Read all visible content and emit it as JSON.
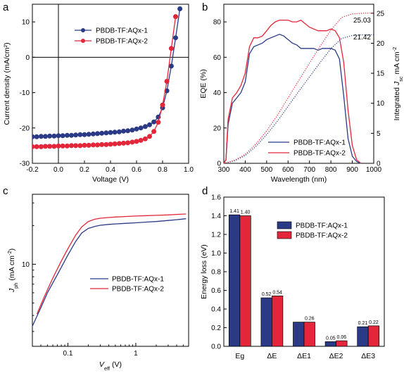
{
  "colors": {
    "blue": "#2a3a86",
    "red": "#e3263a"
  },
  "chart_data": [
    {
      "panel": "a",
      "type": "scatter",
      "xlabel": "Voltage (V)",
      "ylabel": "Current density (mA/cm²)",
      "xlim": [
        -0.2,
        1.0
      ],
      "ylim": [
        -30,
        15
      ],
      "xticks": [
        "-0.2",
        "0.0",
        "0.2",
        "0.4",
        "0.6",
        "0.8",
        "1.0"
      ],
      "yticks": [
        "10",
        "0",
        "-10",
        "-20",
        "-30"
      ],
      "legend": "upper-left",
      "series": [
        {
          "name": "PBDB-TF:AQx-1",
          "color": "#2a3a86",
          "marker": "circle",
          "x": [
            -0.2,
            -0.167,
            -0.133,
            -0.1,
            -0.067,
            -0.033,
            0.0,
            0.033,
            0.067,
            0.1,
            0.133,
            0.167,
            0.2,
            0.233,
            0.267,
            0.3,
            0.333,
            0.367,
            0.4,
            0.433,
            0.467,
            0.5,
            0.533,
            0.567,
            0.6,
            0.633,
            0.667,
            0.7,
            0.733,
            0.767,
            0.8,
            0.833,
            0.867,
            0.9,
            0.933
          ],
          "y": [
            -22.5,
            -22.5,
            -22.4,
            -22.4,
            -22.3,
            -22.3,
            -22.2,
            -22.2,
            -22.1,
            -22.1,
            -22.0,
            -21.9,
            -21.9,
            -21.8,
            -21.7,
            -21.6,
            -21.5,
            -21.4,
            -21.3,
            -21.2,
            -21.1,
            -20.9,
            -20.8,
            -20.6,
            -20.3,
            -20.0,
            -19.6,
            -19.1,
            -18.3,
            -16.9,
            -14.3,
            -9.5,
            -2.5,
            5.5,
            13.7
          ]
        },
        {
          "name": "PBDB-TF:AQx-2",
          "color": "#e3263a",
          "marker": "circle",
          "x": [
            -0.2,
            -0.167,
            -0.133,
            -0.1,
            -0.067,
            -0.033,
            0.0,
            0.033,
            0.067,
            0.1,
            0.133,
            0.167,
            0.2,
            0.233,
            0.267,
            0.3,
            0.333,
            0.367,
            0.4,
            0.433,
            0.467,
            0.5,
            0.533,
            0.567,
            0.6,
            0.633,
            0.667,
            0.7,
            0.733,
            0.767,
            0.8,
            0.833,
            0.867,
            0.9
          ],
          "y": [
            -25.3,
            -25.3,
            -25.3,
            -25.2,
            -25.2,
            -25.2,
            -25.1,
            -25.1,
            -25.1,
            -25.0,
            -25.0,
            -25.0,
            -24.9,
            -24.9,
            -24.8,
            -24.8,
            -24.7,
            -24.7,
            -24.6,
            -24.5,
            -24.4,
            -24.3,
            -24.2,
            -24.0,
            -23.8,
            -23.5,
            -23.1,
            -22.4,
            -21.0,
            -18.4,
            -13.5,
            -6.8,
            2.5,
            11.5
          ]
        }
      ]
    },
    {
      "panel": "b",
      "type": "line",
      "xlabel": "Wavelength (nm)",
      "ylabel": "EQE (%)",
      "y2label_prefix": "Integrated ",
      "y2label_j": "J",
      "y2label_sub": "sc",
      "y2label_suffix": " mA cm",
      "y2label_sup": "-2",
      "xlim": [
        300,
        1000
      ],
      "ylim": [
        0,
        90
      ],
      "y2lim": [
        0,
        26.5
      ],
      "xticks": [
        "300",
        "400",
        "500",
        "600",
        "700",
        "800",
        "900",
        "1000"
      ],
      "yticks": [
        "0",
        "20",
        "40",
        "60",
        "80"
      ],
      "y2ticks": [
        "0",
        "5",
        "10",
        "15",
        "20",
        "25"
      ],
      "legend": "lower-left",
      "annotations": {
        "red_total": "25.03",
        "blue_total": "21.42"
      },
      "series": [
        {
          "name": "PBDB-TF:AQx-1",
          "color": "#2a3a86",
          "x": [
            300,
            310,
            320,
            340,
            360,
            380,
            400,
            420,
            440,
            460,
            480,
            500,
            520,
            540,
            560,
            580,
            600,
            620,
            640,
            660,
            680,
            700,
            720,
            740,
            760,
            780,
            800,
            820,
            840,
            860,
            880,
            900,
            920,
            940
          ],
          "y": [
            0,
            2,
            22,
            34,
            37,
            40,
            46,
            62,
            66,
            67,
            68,
            70,
            71,
            72,
            73,
            72,
            70,
            68,
            67,
            65,
            65,
            65,
            65,
            64,
            65,
            65,
            65,
            64,
            59,
            38,
            14,
            4,
            1,
            0
          ]
        },
        {
          "name": "PBDB-TF:AQx-2",
          "color": "#e3263a",
          "x": [
            300,
            310,
            320,
            340,
            360,
            380,
            400,
            420,
            440,
            460,
            480,
            500,
            520,
            540,
            560,
            580,
            600,
            620,
            640,
            660,
            680,
            700,
            720,
            740,
            760,
            780,
            800,
            820,
            840,
            860,
            880,
            900,
            920,
            940
          ],
          "y": [
            0,
            2,
            25,
            37,
            40,
            44,
            51,
            66,
            71,
            71,
            72,
            75,
            78,
            80,
            81,
            81,
            81,
            80,
            80,
            81,
            79,
            77,
            76,
            75,
            75,
            75,
            76,
            75,
            71,
            57,
            30,
            10,
            2,
            0
          ]
        },
        {
          "name": "",
          "color": "#2a3a86",
          "style": "dotted",
          "axis": "y2",
          "x": [
            300,
            350,
            400,
            450,
            500,
            550,
            600,
            650,
            700,
            750,
            800,
            850,
            900,
            950,
            1000
          ],
          "y": [
            0,
            0.4,
            1.3,
            2.8,
            4.8,
            7.0,
            9.5,
            12.0,
            14.4,
            16.8,
            19.1,
            20.8,
            21.3,
            21.4,
            21.42
          ]
        },
        {
          "name": "",
          "color": "#e3263a",
          "style": "dotted",
          "axis": "y2",
          "x": [
            300,
            350,
            400,
            450,
            500,
            550,
            600,
            650,
            700,
            750,
            800,
            850,
            900,
            950,
            1000
          ],
          "y": [
            0,
            0.5,
            1.5,
            3.2,
            5.4,
            8.0,
            10.9,
            13.8,
            16.7,
            19.5,
            22.2,
            24.3,
            24.9,
            25.0,
            25.03
          ]
        }
      ]
    },
    {
      "panel": "c",
      "type": "line",
      "xlabel_v": "V",
      "xlabel_sub": "eff",
      "xlabel_suffix": " (V)",
      "ylabel_j": "J",
      "ylabel_sub": "ph",
      "ylabel_suffix": " (mA cm",
      "ylabel_sup": "-2",
      "ylabel_end": ")",
      "xscale": "log",
      "yscale": "log",
      "xlim": [
        0.03,
        6
      ],
      "ylim": [
        2.3,
        35
      ],
      "xticks": [
        "0.1",
        "1"
      ],
      "yticks": [
        "10"
      ],
      "legend": "lower-right",
      "series": [
        {
          "name": "PBDB-TF:AQx-1",
          "color": "#2a3a86",
          "x": [
            0.03,
            0.04,
            0.05,
            0.07,
            0.1,
            0.13,
            0.16,
            0.2,
            0.25,
            0.3,
            0.4,
            0.5,
            0.7,
            1,
            1.5,
            2,
            3,
            4,
            5.5
          ],
          "y": [
            3.3,
            4.6,
            6.0,
            8.3,
            11.8,
            15.0,
            17.5,
            19.0,
            19.7,
            20.1,
            20.4,
            20.6,
            20.8,
            21.0,
            21.3,
            21.5,
            21.9,
            22.2,
            22.6
          ]
        },
        {
          "name": "PBDB-TF:AQx-2",
          "color": "#e3263a",
          "x": [
            0.035,
            0.045,
            0.06,
            0.08,
            0.1,
            0.13,
            0.16,
            0.2,
            0.25,
            0.3,
            0.4,
            0.5,
            0.7,
            1,
            1.5,
            2,
            3,
            4,
            5.5
          ],
          "y": [
            4.1,
            5.6,
            7.8,
            10.6,
            13.2,
            16.8,
            19.5,
            21.5,
            22.4,
            22.8,
            23.1,
            23.3,
            23.5,
            23.7,
            23.9,
            24.0,
            24.2,
            24.4,
            24.6
          ]
        }
      ]
    },
    {
      "panel": "d",
      "type": "bar",
      "ylabel": "Energy loss (eV)",
      "categories": [
        "Eg",
        "ΔE",
        "ΔE1",
        "ΔE2",
        "ΔE3"
      ],
      "ylim": [
        0,
        1.6
      ],
      "yticks": [
        "0.0",
        "0.2",
        "0.4",
        "0.6",
        "0.8",
        "1.0",
        "1.2",
        "1.4",
        "1.6"
      ],
      "legend": "upper-right",
      "series": [
        {
          "name": "PBDB-TF:AQx-1",
          "color": "#2a3a86",
          "values": [
            1.41,
            0.52,
            0.26,
            0.05,
            0.21
          ],
          "labels": [
            "1.41",
            "0.52",
            "",
            "0.05",
            "0.21"
          ]
        },
        {
          "name": "PBDB-TF:AQx-2",
          "color": "#e3263a",
          "values": [
            1.4,
            0.54,
            0.26,
            0.06,
            0.22
          ],
          "labels": [
            "1.40",
            "0.54",
            "0.26",
            "0.06",
            "0.22"
          ]
        }
      ]
    }
  ]
}
